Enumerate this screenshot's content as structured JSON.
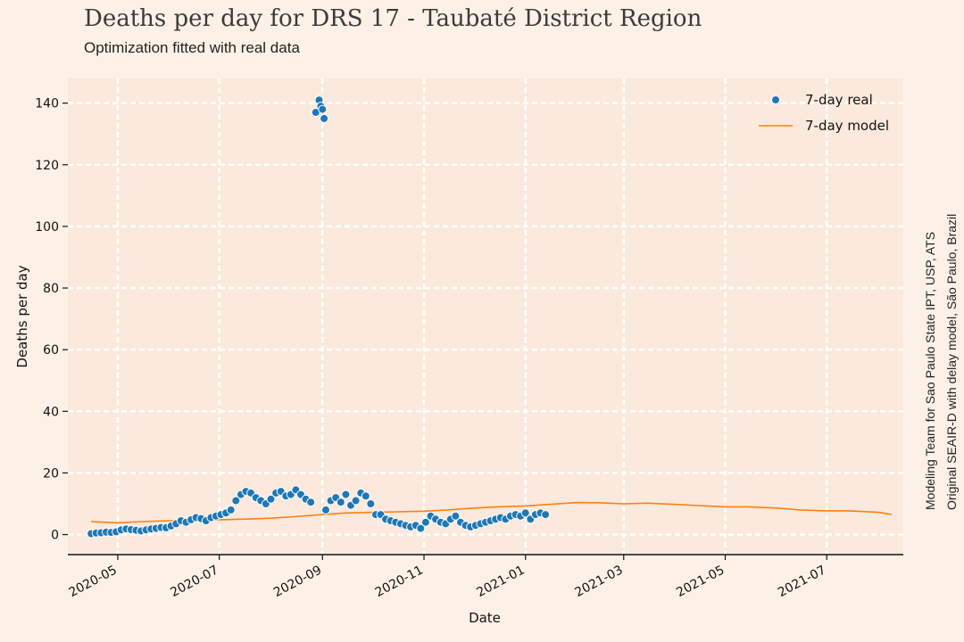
{
  "chart_data": {
    "type": "scatter",
    "title": "Deaths per day for DRS 17 - Taubaté District Region",
    "subtitle": "Optimization fitted with real data",
    "xlabel": "Date",
    "ylabel": "Deaths per day",
    "xlim": [
      "2020-04-01",
      "2021-08-16"
    ],
    "ylim": [
      -6.5,
      148
    ],
    "x_ticks": [
      "2020-05",
      "2020-07",
      "2020-09",
      "2020-11",
      "2021-01",
      "2021-03",
      "2021-05",
      "2021-07"
    ],
    "y_ticks": [
      0,
      20,
      40,
      60,
      80,
      100,
      120,
      140
    ],
    "grid": true,
    "legend": {
      "placement": "top-right",
      "entries": [
        "7-day real",
        "7-day model"
      ]
    },
    "colors": {
      "real": "#1f77b4",
      "model": "#ff7f0e",
      "background": "#fdf1e7",
      "plot_bg": "#fae9dc"
    },
    "side_note": [
      "Modeling Team for Sao Paulo State IPT, USP, ATS",
      "Original SEAIR-D with delay model, São Paulo, Brazil"
    ],
    "series": [
      {
        "name": "7-day real",
        "kind": "scatter",
        "x": [
          "2020-04-15",
          "2020-04-18",
          "2020-04-21",
          "2020-04-24",
          "2020-04-27",
          "2020-04-30",
          "2020-05-03",
          "2020-05-06",
          "2020-05-09",
          "2020-05-12",
          "2020-05-15",
          "2020-05-18",
          "2020-05-21",
          "2020-05-24",
          "2020-05-27",
          "2020-05-30",
          "2020-06-02",
          "2020-06-05",
          "2020-06-08",
          "2020-06-11",
          "2020-06-14",
          "2020-06-17",
          "2020-06-20",
          "2020-06-23",
          "2020-06-26",
          "2020-06-29",
          "2020-07-02",
          "2020-07-05",
          "2020-07-08",
          "2020-07-11",
          "2020-07-14",
          "2020-07-17",
          "2020-07-20",
          "2020-07-23",
          "2020-07-26",
          "2020-07-29",
          "2020-08-01",
          "2020-08-04",
          "2020-08-07",
          "2020-08-10",
          "2020-08-13",
          "2020-08-16",
          "2020-08-19",
          "2020-08-22",
          "2020-08-25",
          "2020-08-28",
          "2020-08-30",
          "2020-08-31",
          "2020-09-01",
          "2020-09-02",
          "2020-09-03",
          "2020-09-06",
          "2020-09-09",
          "2020-09-12",
          "2020-09-15",
          "2020-09-18",
          "2020-09-21",
          "2020-09-24",
          "2020-09-27",
          "2020-09-30",
          "2020-10-03",
          "2020-10-06",
          "2020-10-09",
          "2020-10-12",
          "2020-10-15",
          "2020-10-18",
          "2020-10-21",
          "2020-10-24",
          "2020-10-27",
          "2020-10-30",
          "2020-11-02",
          "2020-11-05",
          "2020-11-08",
          "2020-11-11",
          "2020-11-14",
          "2020-11-17",
          "2020-11-20",
          "2020-11-23",
          "2020-11-26",
          "2020-11-29",
          "2020-12-02",
          "2020-12-05",
          "2020-12-08",
          "2020-12-11",
          "2020-12-14",
          "2020-12-17",
          "2020-12-20",
          "2020-12-23",
          "2020-12-26",
          "2020-12-29",
          "2021-01-01",
          "2021-01-04",
          "2021-01-07",
          "2021-01-10",
          "2021-01-13"
        ],
        "y": [
          0.3,
          0.5,
          0.6,
          0.8,
          0.7,
          0.9,
          1.5,
          1.8,
          1.6,
          1.4,
          1.2,
          1.5,
          1.8,
          2.0,
          2.3,
          2.2,
          2.8,
          3.5,
          4.5,
          4.0,
          4.8,
          5.5,
          5.2,
          4.5,
          5.5,
          6.0,
          6.5,
          7.0,
          8.0,
          11.0,
          13.0,
          14.0,
          13.5,
          12.0,
          11.0,
          10.0,
          11.5,
          13.5,
          14.0,
          12.5,
          13.0,
          14.5,
          13.0,
          11.5,
          10.5,
          137,
          141,
          139,
          138,
          135,
          8.0,
          11.0,
          12.0,
          10.5,
          13.0,
          9.5,
          11.0,
          13.5,
          12.5,
          10.0,
          6.5,
          6.5,
          5.0,
          4.5,
          4.0,
          3.5,
          3.0,
          2.5,
          3.0,
          2.0,
          4.0,
          6.0,
          5.0,
          4.0,
          3.5,
          5.0,
          6.0,
          4.0,
          3.0,
          2.5,
          3.0,
          3.5,
          4.0,
          4.5,
          5.0,
          5.5,
          5.0,
          6.0,
          6.5,
          6.0,
          7.0,
          5.0,
          6.5,
          7.0,
          6.5
        ]
      },
      {
        "name": "7-day model",
        "kind": "line",
        "x": [
          "2020-04-15",
          "2020-05-01",
          "2020-05-15",
          "2020-06-01",
          "2020-06-15",
          "2020-07-01",
          "2020-07-15",
          "2020-08-01",
          "2020-08-15",
          "2020-09-01",
          "2020-09-15",
          "2020-10-01",
          "2020-10-15",
          "2020-11-01",
          "2020-11-15",
          "2020-12-01",
          "2020-12-15",
          "2021-01-01",
          "2021-01-15",
          "2021-02-01",
          "2021-02-15",
          "2021-03-01",
          "2021-03-15",
          "2021-04-01",
          "2021-04-15",
          "2021-05-01",
          "2021-05-15",
          "2021-06-01",
          "2021-06-15",
          "2021-07-01",
          "2021-07-15",
          "2021-08-01",
          "2021-08-09"
        ],
        "y": [
          4.2,
          3.8,
          4.2,
          4.5,
          4.5,
          4.8,
          5.0,
          5.3,
          5.8,
          6.5,
          7.0,
          7.2,
          7.4,
          7.6,
          8.0,
          8.6,
          9.0,
          9.3,
          9.8,
          10.4,
          10.3,
          10.0,
          10.2,
          9.8,
          9.4,
          9.0,
          9.0,
          8.6,
          8.0,
          7.7,
          7.7,
          7.2,
          6.5
        ]
      }
    ]
  }
}
